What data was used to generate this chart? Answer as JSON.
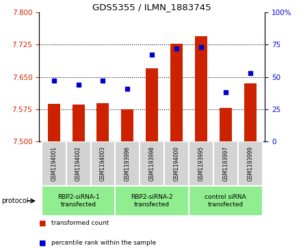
{
  "title": "GDS5355 / ILMN_1883745",
  "samples": [
    "GSM1194001",
    "GSM1194002",
    "GSM1194003",
    "GSM1193996",
    "GSM1193998",
    "GSM1194000",
    "GSM1193995",
    "GSM1193997",
    "GSM1193999"
  ],
  "red_values": [
    7.588,
    7.585,
    7.589,
    7.575,
    7.67,
    7.727,
    7.745,
    7.578,
    7.635
  ],
  "blue_values": [
    47,
    44,
    47,
    41,
    67,
    72,
    73,
    38,
    53
  ],
  "ylim_left": [
    7.5,
    7.8
  ],
  "ylim_right": [
    0,
    100
  ],
  "yticks_left": [
    7.5,
    7.575,
    7.65,
    7.725,
    7.8
  ],
  "yticks_right": [
    0,
    25,
    50,
    75,
    100
  ],
  "bar_color": "#cc2200",
  "dot_color": "#0000cc",
  "bar_bottom": 7.5,
  "groups": [
    {
      "label": "RBP2-siRNA-1\ntransfected",
      "start": 0,
      "end": 3,
      "color": "#90ee90"
    },
    {
      "label": "RBP2-siRNA-2\ntransfected",
      "start": 3,
      "end": 6,
      "color": "#90ee90"
    },
    {
      "label": "control siRNA\ntransfected",
      "start": 6,
      "end": 9,
      "color": "#90ee90"
    }
  ],
  "protocol_label": "protocol",
  "legend_red": "transformed count",
  "legend_blue": "percentile rank within the sample",
  "tick_color_left": "#cc2200",
  "tick_color_right": "#0000cc",
  "sample_box_color": "#d3d3d3",
  "background_color": "#ffffff"
}
